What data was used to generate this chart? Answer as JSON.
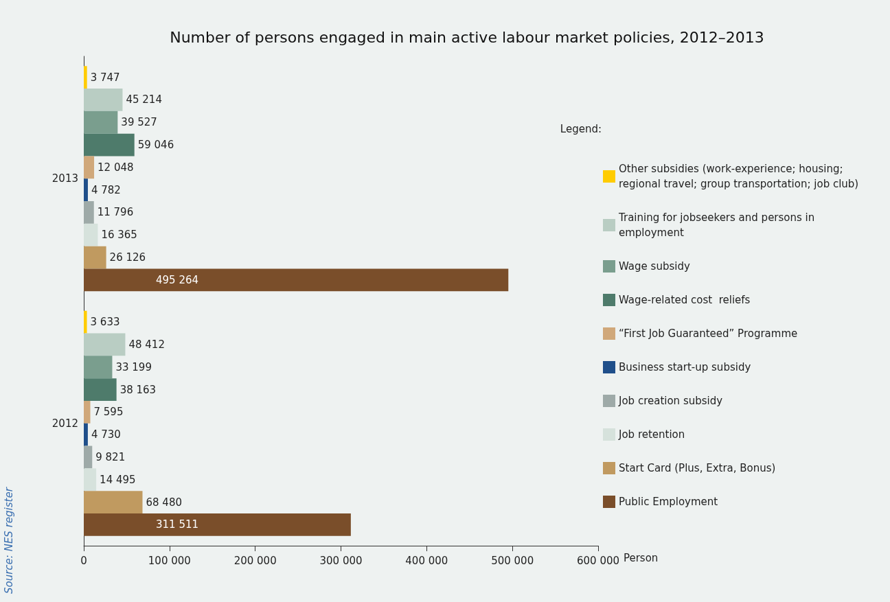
{
  "chart_data": {
    "type": "bar",
    "orientation": "horizontal",
    "title": "Number of persons engaged in main active labour market policies, 2012–2013",
    "categories": [
      "2013",
      "2012"
    ],
    "series": [
      {
        "name": "Other subsidies (work-experience; housing; regional travel; group transportation; job club)",
        "color": "#ffcc00",
        "values": [
          3747,
          3633
        ]
      },
      {
        "name": "Training for jobseekers and persons in employment",
        "color": "#b9cdc3",
        "values": [
          45214,
          48412
        ]
      },
      {
        "name": "Wage subsidy",
        "color": "#7a9e8e",
        "values": [
          39527,
          33199
        ]
      },
      {
        "name": "Wage-related cost  reliefs",
        "color": "#4e7b6b",
        "values": [
          59046,
          38163
        ]
      },
      {
        "name": "“First Job Guaranteed” Programme",
        "color": "#d0a87a",
        "values": [
          12048,
          7595
        ]
      },
      {
        "name": "Business start-up subsidy",
        "color": "#1f4f8a",
        "values": [
          4782,
          4730
        ]
      },
      {
        "name": "Job creation subsidy",
        "color": "#9eaaa8",
        "values": [
          11796,
          9821
        ]
      },
      {
        "name": "Job retention",
        "color": "#d6e2dc",
        "values": [
          16365,
          14495
        ]
      },
      {
        "name": "Start Card (Plus, Extra, Bonus)",
        "color": "#c09a60",
        "values": [
          26126,
          68480
        ]
      },
      {
        "name": "Public Employment",
        "color": "#7a4e2a",
        "values": [
          495264,
          311511
        ]
      }
    ],
    "xlabel": "Person",
    "legend_title": "Legend:",
    "legend": "right",
    "xlim": [
      0,
      600000
    ],
    "xticks": [
      0,
      {
        "value": 100000,
        "label": "100 000"
      },
      {
        "value": 200000,
        "label": "200 000"
      },
      {
        "value": 300000,
        "label": "300 000"
      },
      {
        "value": 400000,
        "label": "400 000"
      },
      {
        "value": 500000,
        "label": "500 000"
      },
      {
        "value": 600000,
        "label": "600 000"
      }
    ],
    "data_labels": true,
    "grid": false,
    "annotations": [
      "Source: NES register"
    ]
  }
}
